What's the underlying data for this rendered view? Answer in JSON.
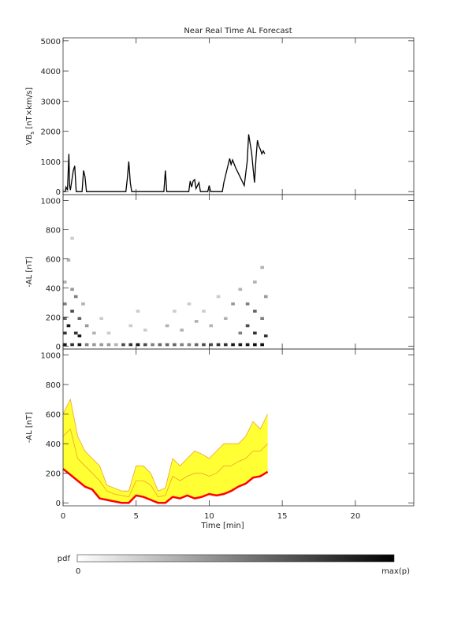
{
  "chart_data": [
    {
      "type": "line",
      "title": "Near Real Time AL Forecast",
      "ylabel": {
        "main": "VB",
        "sub": "s",
        "rest": " [nT×km/s]"
      },
      "xlim": [
        0,
        24
      ],
      "xticks": [
        0,
        5,
        10,
        15,
        20
      ],
      "xtick_labels": false,
      "ylim": [
        -100,
        5100
      ],
      "yticks": [
        0,
        1000,
        2000,
        3000,
        4000,
        5000
      ],
      "series": [
        {
          "color": "#000000",
          "x": [
            0,
            0.15,
            0.2,
            0.3,
            0.4,
            0.45,
            0.5,
            0.7,
            0.8,
            0.9,
            1.3,
            1.4,
            1.5,
            1.6,
            2.2,
            4.3,
            4.4,
            4.5,
            4.6,
            4.7,
            6.9,
            7.0,
            7.1,
            8.6,
            8.7,
            8.8,
            8.9,
            9.0,
            9.1,
            9.3,
            9.4,
            9.9,
            10.0,
            10.1,
            10.9,
            11.0,
            11.2,
            11.4,
            11.5,
            11.6,
            11.8,
            12.0,
            12.2,
            12.4,
            12.6,
            12.7,
            12.8,
            12.9,
            13.0,
            13.1,
            13.2,
            13.3,
            13.4,
            13.5,
            13.6,
            13.7,
            13.8
          ],
          "values": [
            0,
            0,
            150,
            50,
            1250,
            200,
            50,
            700,
            850,
            0,
            0,
            700,
            500,
            0,
            0,
            0,
            450,
            1000,
            300,
            0,
            0,
            700,
            0,
            0,
            350,
            150,
            350,
            400,
            100,
            300,
            0,
            0,
            200,
            0,
            0,
            300,
            700,
            1100,
            900,
            1050,
            800,
            600,
            400,
            200,
            1000,
            1900,
            1600,
            1300,
            800,
            300,
            1100,
            1700,
            1500,
            1400,
            1250,
            1350,
            1250
          ]
        }
      ]
    },
    {
      "type": "heatmap",
      "ylabel": {
        "main": "-AL [nT]"
      },
      "xlim": [
        0,
        24
      ],
      "xticks": [
        0,
        5,
        10,
        15,
        20
      ],
      "xtick_labels": false,
      "ylim": [
        -20,
        1040
      ],
      "yticks": [
        0,
        200,
        400,
        600,
        800,
        1000
      ],
      "cells": {
        "x": [
          0,
          0.5,
          1,
          1.5,
          2,
          2.5,
          3,
          3.5,
          4,
          4.5,
          5,
          5.5,
          6,
          6.5,
          7,
          7.5,
          8,
          8.5,
          9,
          9.5,
          10,
          10.5,
          11,
          11.5,
          12,
          12.5,
          13,
          13.5,
          0,
          0,
          0,
          0,
          0.25,
          0.25,
          0.5,
          0.5,
          0.5,
          0.75,
          0.75,
          1,
          1,
          1.25,
          1.5,
          2,
          2.5,
          3,
          4.5,
          5,
          5.5,
          7,
          7.5,
          8,
          8.5,
          9,
          9.5,
          10,
          10.5,
          11,
          11.5,
          12,
          12,
          12.5,
          12.5,
          13,
          13,
          13,
          13.5,
          13.5,
          13.75,
          13.75
        ],
        "y": [
          20,
          20,
          20,
          20,
          20,
          20,
          20,
          20,
          20,
          20,
          20,
          20,
          20,
          20,
          20,
          20,
          20,
          20,
          20,
          20,
          20,
          20,
          20,
          20,
          20,
          20,
          20,
          20,
          100,
          200,
          300,
          450,
          150,
          600,
          250,
          400,
          750,
          100,
          350,
          200,
          80,
          300,
          150,
          100,
          200,
          100,
          150,
          250,
          120,
          150,
          250,
          120,
          300,
          180,
          250,
          150,
          350,
          200,
          300,
          100,
          400,
          150,
          300,
          100,
          250,
          450,
          200,
          550,
          80,
          350
        ],
        "p": [
          0.9,
          0.8,
          0.9,
          0.5,
          0.4,
          0.4,
          0.4,
          0.3,
          0.7,
          0.8,
          0.9,
          0.7,
          0.5,
          0.6,
          0.6,
          0.6,
          0.5,
          0.5,
          0.6,
          0.7,
          0.7,
          0.8,
          0.8,
          0.9,
          0.9,
          0.9,
          0.95,
          0.95,
          0.8,
          0.6,
          0.5,
          0.3,
          0.9,
          0.3,
          0.7,
          0.4,
          0.2,
          0.8,
          0.5,
          0.6,
          0.9,
          0.3,
          0.4,
          0.3,
          0.2,
          0.2,
          0.2,
          0.2,
          0.2,
          0.3,
          0.2,
          0.3,
          0.2,
          0.3,
          0.2,
          0.3,
          0.2,
          0.3,
          0.4,
          0.5,
          0.3,
          0.7,
          0.5,
          0.8,
          0.6,
          0.3,
          0.5,
          0.3,
          0.8,
          0.4
        ]
      }
    },
    {
      "type": "band",
      "ylabel": {
        "main": "-AL [nT]"
      },
      "xlabel": "Time [min]",
      "xlim": [
        0,
        24
      ],
      "xticks": [
        0,
        5,
        10,
        15,
        20
      ],
      "xtick_labels": true,
      "ylim": [
        -20,
        1040
      ],
      "yticks": [
        0,
        200,
        400,
        600,
        800,
        1000
      ],
      "x": [
        0,
        0.5,
        1,
        1.5,
        2,
        2.5,
        3,
        3.5,
        4,
        4.5,
        5,
        5.5,
        6,
        6.5,
        7,
        7.5,
        8,
        8.5,
        9,
        9.5,
        10,
        10.5,
        11,
        11.5,
        12,
        12.5,
        13,
        13.5,
        14
      ],
      "series": [
        {
          "color": "#ff0000",
          "values": [
            230,
            190,
            150,
            110,
            90,
            30,
            20,
            10,
            0,
            0,
            50,
            40,
            20,
            0,
            0,
            40,
            30,
            50,
            30,
            40,
            60,
            50,
            60,
            80,
            110,
            130,
            170,
            180,
            210
          ]
        },
        {
          "color": "#f0a030",
          "fill": "#ffff33",
          "values": [
            600,
            700,
            450,
            350,
            300,
            250,
            120,
            100,
            80,
            80,
            250,
            250,
            200,
            80,
            100,
            300,
            250,
            300,
            350,
            330,
            300,
            350,
            400,
            400,
            400,
            450,
            550,
            500,
            600
          ]
        },
        {
          "color": "#f0a030",
          "values": [
            450,
            500,
            300,
            250,
            200,
            150,
            80,
            60,
            50,
            40,
            150,
            150,
            120,
            40,
            50,
            180,
            150,
            180,
            200,
            200,
            180,
            200,
            250,
            250,
            280,
            300,
            350,
            350,
            400
          ]
        }
      ]
    }
  ],
  "colorbar": {
    "label": "pdf",
    "min_label": "0",
    "max_label": "max(p)"
  }
}
